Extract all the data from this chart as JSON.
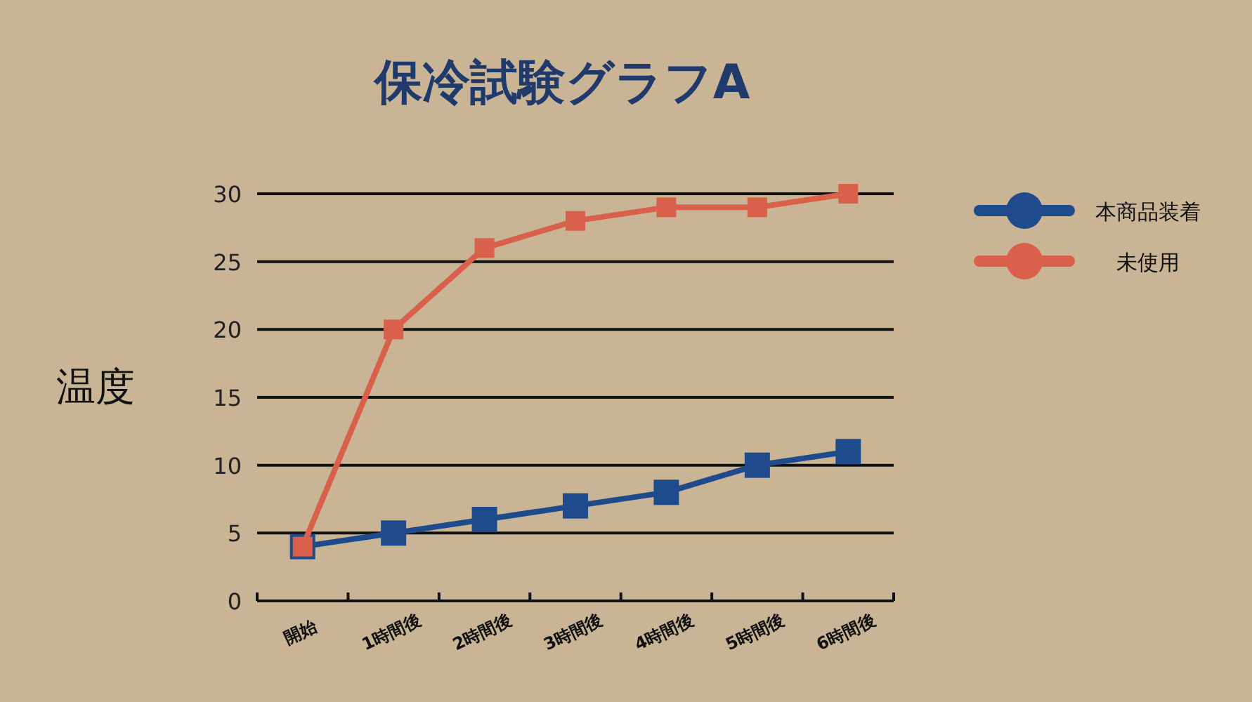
{
  "chart_data": {
    "type": "line",
    "title": "保冷試験グラフA",
    "ylabel": "温度",
    "categories": [
      "開始",
      "1時間後",
      "2時間後",
      "3時間後",
      "4時間後",
      "5時間後",
      "6時間後"
    ],
    "series": [
      {
        "name": "本商品装着",
        "color": "#1f4a8c",
        "values": [
          4,
          5,
          6,
          7,
          8,
          10,
          11
        ]
      },
      {
        "name": "未使用",
        "color": "#d9604a",
        "values": [
          4,
          20,
          26,
          28,
          29,
          29,
          30
        ]
      }
    ],
    "ylim": [
      0,
      30
    ],
    "yticks": [
      0,
      5,
      10,
      15,
      20,
      25,
      30
    ],
    "grid": "y",
    "legend": "top right",
    "marker": "square",
    "line_style": "solid"
  }
}
